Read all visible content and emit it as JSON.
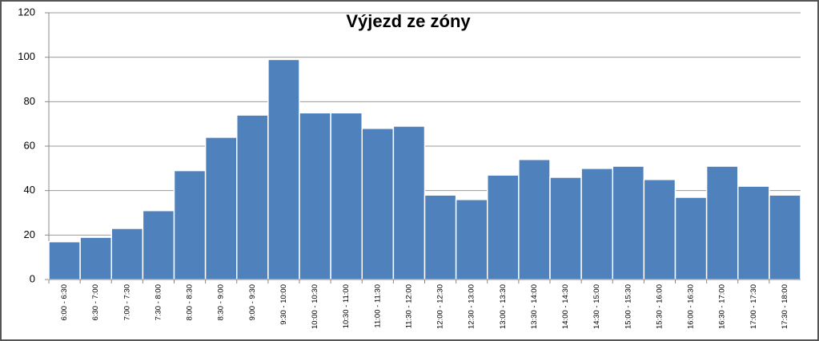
{
  "chart_data": {
    "type": "bar",
    "title": "Výjezd ze zóny",
    "categories": [
      "6:00 - 6:30",
      "6:30 - 7:00",
      "7:00 - 7:30",
      "7:30 - 8:00",
      "8:00 - 8:30",
      "8:30 - 9:00",
      "9:00 - 9:30",
      "9:30 - 10:00",
      "10:00 - 10:30",
      "10:30 - 11:00",
      "11:00 - 11:30",
      "11:30 - 12:00",
      "12:00 - 12:30",
      "12:30 - 13:00",
      "13:00 - 13:30",
      "13:30 - 14:00",
      "14:00 - 14:30",
      "14:30 - 15:00",
      "15:00 - 15:30",
      "15:30 - 16:00",
      "16:00 - 16:30",
      "16:30 - 17:00",
      "17:00 - 17:30",
      "17:30 - 18:00"
    ],
    "values": [
      17,
      19,
      23,
      31,
      49,
      64,
      74,
      99,
      75,
      75,
      68,
      69,
      38,
      36,
      47,
      54,
      46,
      50,
      51,
      45,
      37,
      51,
      42,
      38
    ],
    "color": "#4f81bd",
    "ylim": [
      0,
      120
    ],
    "yticks": [
      0,
      20,
      40,
      60,
      80,
      100,
      120
    ],
    "grid": true
  }
}
